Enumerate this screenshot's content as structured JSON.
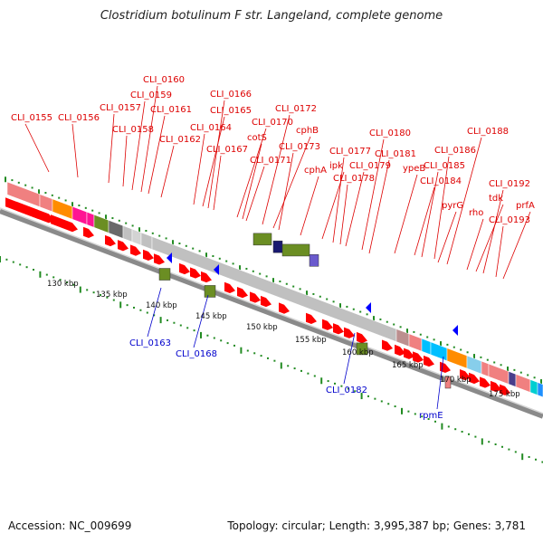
{
  "title": "Clostridium botulinum F str. Langeland, complete genome",
  "footer": {
    "accession": "Accession: NC_009699",
    "summary": "Topology: circular; Length: 3,995,387 bp; Genes: 3,781"
  },
  "colors": {
    "forward_label": "#dd0000",
    "reverse_label": "#0000cc",
    "arrow": "#ff0000",
    "backbone": "#8a8a8a",
    "tick": "#228b22"
  },
  "ruler": {
    "ticks": [
      {
        "label": "130 kbp"
      },
      {
        "label": "135 kbp"
      },
      {
        "label": "140 kbp"
      },
      {
        "label": "145 kbp"
      },
      {
        "label": "150 kbp"
      },
      {
        "label": "155 kbp"
      },
      {
        "label": "160 kbp"
      },
      {
        "label": "165 kbp"
      },
      {
        "label": "170 kbp"
      },
      {
        "label": "175 kbp"
      }
    ]
  },
  "forward_genes": [
    {
      "label": "CLI_0155"
    },
    {
      "label": "CLI_0156"
    },
    {
      "label": "CLI_0157"
    },
    {
      "label": "CLI_0158"
    },
    {
      "label": "CLI_0159"
    },
    {
      "label": "CLI_0160"
    },
    {
      "label": "CLI_0161"
    },
    {
      "label": "CLI_0162"
    },
    {
      "label": "CLI_0164"
    },
    {
      "label": "CLI_0165"
    },
    {
      "label": "CLI_0166"
    },
    {
      "label": "CLI_0167"
    },
    {
      "label": "CLI_0170"
    },
    {
      "label": "cotS"
    },
    {
      "label": "CLI_0171"
    },
    {
      "label": "CLI_0172"
    },
    {
      "label": "cphB"
    },
    {
      "label": "CLI_0173"
    },
    {
      "label": "cphA"
    },
    {
      "label": "ipk"
    },
    {
      "label": "CLI_0177"
    },
    {
      "label": "CLI_0178"
    },
    {
      "label": "CLI_0179"
    },
    {
      "label": "CLI_0180"
    },
    {
      "label": "CLI_0181"
    },
    {
      "label": "ypeB"
    },
    {
      "label": "CLI_0184"
    },
    {
      "label": "CLI_0185"
    },
    {
      "label": "CLI_0186"
    },
    {
      "label": "pyrG"
    },
    {
      "label": "CLI_0188"
    },
    {
      "label": "rho"
    },
    {
      "label": "tdk"
    },
    {
      "label": "CLI_0192"
    },
    {
      "label": "CLI_0193"
    },
    {
      "label": "prfA"
    }
  ],
  "reverse_genes": [
    {
      "label": "CLI_0163"
    },
    {
      "label": "CLI_0168"
    },
    {
      "label": "CLI_0182"
    },
    {
      "label": "rpmE"
    }
  ]
}
